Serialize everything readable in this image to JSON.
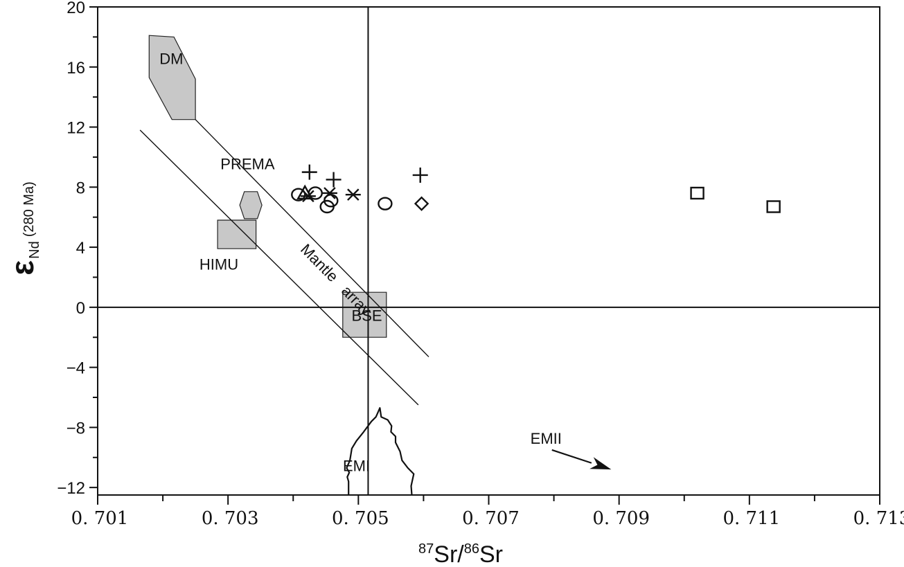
{
  "chart_data": {
    "type": "scatter",
    "xlabel": {
      "sup1": "87",
      "part1": "Sr/",
      "sup2": "86",
      "part2": "Sr"
    },
    "ylabel": {
      "main": "ε",
      "sub": "Nd",
      "suffix": "(280 Ma)"
    },
    "xlim": [
      0.701,
      0.713
    ],
    "ylim": [
      -12.5,
      20
    ],
    "x_ticks": [
      0.701,
      0.703,
      0.705,
      0.707,
      0.709,
      0.711,
      0.713
    ],
    "x_tick_labels": [
      "0. 701",
      "0. 703",
      "0. 705",
      "0. 707",
      "0. 709",
      "0. 711",
      "0. 713"
    ],
    "x_minor_ticks": [
      0.702,
      0.704,
      0.706,
      0.708,
      0.71,
      0.712
    ],
    "y_ticks": [
      20,
      16,
      12,
      8,
      4,
      0,
      -4,
      -8,
      -12
    ],
    "y_tick_labels": [
      "20",
      "16",
      "12",
      "8",
      "4",
      "0",
      "−4",
      "−8",
      "−12"
    ],
    "y_minor_ticks": [
      18,
      14,
      10,
      6,
      2,
      -2,
      -6,
      -10
    ],
    "reference_lines": {
      "x": 0.70515,
      "y": 0
    },
    "grid": false,
    "regions": [
      {
        "name": "DM",
        "label": "DM",
        "label_at": [
          0.70213,
          16.2
        ],
        "polygon": [
          [
            0.70179,
            18.1
          ],
          [
            0.70217,
            18.0
          ],
          [
            0.7025,
            15.2
          ],
          [
            0.7025,
            12.5
          ],
          [
            0.70214,
            12.5
          ],
          [
            0.70179,
            15.3
          ]
        ]
      },
      {
        "name": "PREMA",
        "label": "PREMA",
        "label_at": [
          0.7033,
          9.2
        ],
        "polygon": [
          [
            0.70325,
            7.7
          ],
          [
            0.70345,
            7.7
          ],
          [
            0.70352,
            6.8
          ],
          [
            0.70345,
            5.9
          ],
          [
            0.70325,
            5.9
          ],
          [
            0.70318,
            6.8
          ]
        ]
      },
      {
        "name": "HIMU",
        "label": "HIMU",
        "label_at": [
          0.70286,
          2.5
        ],
        "polygon": [
          [
            0.70284,
            5.8
          ],
          [
            0.70343,
            5.8
          ],
          [
            0.70343,
            3.9
          ],
          [
            0.70284,
            3.9
          ]
        ]
      },
      {
        "name": "BSE",
        "label": "BSE",
        "label_at": [
          0.70513,
          -0.9
        ],
        "polygon": [
          [
            0.70476,
            1.0
          ],
          [
            0.70543,
            1.0
          ],
          [
            0.70543,
            -2.0
          ],
          [
            0.70476,
            -2.0
          ]
        ]
      }
    ],
    "mantle_array": {
      "label_words": [
        "Mantle",
        "array"
      ],
      "lines": [
        [
          [
            0.7025,
            12.5
          ],
          [
            0.70608,
            -3.3
          ]
        ],
        [
          [
            0.70165,
            11.8
          ],
          [
            0.70592,
            -6.5
          ]
        ]
      ]
    },
    "em_regions": [
      {
        "name": "EMI",
        "label": "EMI",
        "label_at": [
          0.70497,
          -10.9
        ],
        "outline": [
          [
            0.70485,
            -12.5
          ],
          [
            0.70485,
            -11.6
          ],
          [
            0.70483,
            -11.3
          ],
          [
            0.70486,
            -11.0
          ],
          [
            0.70482,
            -10.7
          ],
          [
            0.70487,
            -10.2
          ],
          [
            0.7049,
            -9.4
          ],
          [
            0.70497,
            -8.9
          ],
          [
            0.70508,
            -8.3
          ],
          [
            0.7052,
            -7.6
          ],
          [
            0.70527,
            -7.3
          ],
          [
            0.7053,
            -7.0
          ],
          [
            0.70533,
            -6.7
          ],
          [
            0.70535,
            -7.3
          ],
          [
            0.70545,
            -7.5
          ],
          [
            0.70551,
            -7.9
          ],
          [
            0.7055,
            -8.3
          ],
          [
            0.70557,
            -8.6
          ],
          [
            0.70557,
            -9.0
          ],
          [
            0.70564,
            -9.6
          ],
          [
            0.70567,
            -10.2
          ],
          [
            0.70576,
            -10.7
          ],
          [
            0.70585,
            -11.1
          ],
          [
            0.70581,
            -11.9
          ],
          [
            0.70582,
            -12.5
          ]
        ]
      },
      {
        "name": "EMII",
        "label": "EMII",
        "label_at": [
          0.70788,
          -9.1
        ],
        "arrow": [
          [
            0.70797,
            -9.5
          ],
          [
            0.70888,
            -10.8
          ]
        ]
      }
    ],
    "series": [
      {
        "marker": "plus",
        "x": [
          0.70425,
          0.70462,
          0.70595
        ],
        "y": [
          9.0,
          8.5,
          8.8
        ]
      },
      {
        "marker": "asterisk",
        "x": [
          0.70423,
          0.70456,
          0.70492
        ],
        "y": [
          7.4,
          7.6,
          7.5
        ]
      },
      {
        "marker": "circle",
        "x": [
          0.70408,
          0.70434,
          0.70458,
          0.70452,
          0.70541
        ],
        "y": [
          7.5,
          7.6,
          7.1,
          6.7,
          6.9
        ]
      },
      {
        "marker": "triangle",
        "x": [
          0.70418
        ],
        "y": [
          7.6
        ]
      },
      {
        "marker": "diamond",
        "x": [
          0.70597
        ],
        "y": [
          6.9
        ]
      },
      {
        "marker": "square",
        "x": [
          0.7102,
          0.71137
        ],
        "y": [
          7.6,
          6.7
        ]
      }
    ]
  }
}
